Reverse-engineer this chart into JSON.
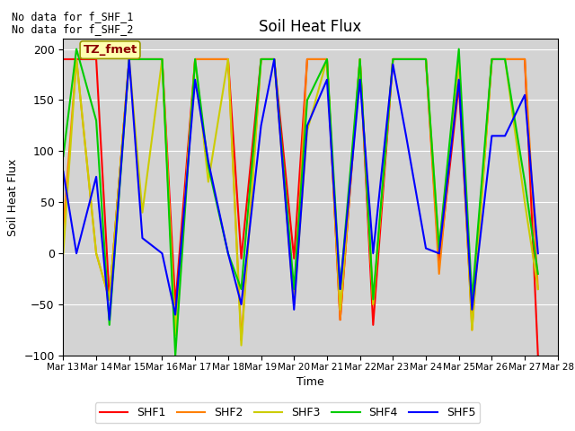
{
  "title": "Soil Heat Flux",
  "xlabel": "Time",
  "ylabel": "Soil Heat Flux",
  "ylim": [
    -100,
    210
  ],
  "yticks": [
    -100,
    -50,
    0,
    50,
    100,
    150,
    200
  ],
  "annotation_lines": [
    "No data for f_SHF_1",
    "No data for f_SHF_2"
  ],
  "annotation_box_text": "TZ_fmet",
  "colors": {
    "SHF1": "#ff0000",
    "SHF2": "#ff8000",
    "SHF3": "#cccc00",
    "SHF4": "#00cc00",
    "SHF5": "#0000ff"
  },
  "background_color": "#d3d3d3",
  "series": {
    "SHF1": {
      "x": [
        0,
        0.4,
        1,
        1.4,
        2,
        2.4,
        3,
        3.4,
        4,
        4.4,
        5,
        5.4,
        6,
        6.4,
        7,
        7.4,
        8,
        8.4,
        9,
        9.4,
        10,
        10.4,
        11,
        11.4,
        12,
        12.4,
        13,
        13.4,
        14,
        14.4
      ],
      "y": [
        190,
        190,
        190,
        -45,
        190,
        190,
        190,
        -50,
        190,
        190,
        190,
        -5,
        190,
        190,
        -5,
        190,
        190,
        -65,
        190,
        -70,
        190,
        190,
        190,
        -10,
        165,
        -65,
        190,
        190,
        190,
        -100
      ]
    },
    "SHF2": {
      "x": [
        0,
        0.4,
        1,
        1.4,
        2,
        2.4,
        3,
        3.4,
        4,
        4.4,
        5,
        5.4,
        6,
        6.4,
        7,
        7.4,
        8,
        8.4,
        9,
        9.4,
        10,
        10.4,
        11,
        11.4,
        12,
        12.4,
        13,
        13.4,
        14,
        14.4
      ],
      "y": [
        25,
        190,
        0,
        -45,
        190,
        190,
        190,
        -80,
        190,
        190,
        190,
        -85,
        190,
        190,
        -50,
        190,
        190,
        -65,
        190,
        -50,
        190,
        190,
        190,
        -20,
        190,
        -75,
        190,
        190,
        190,
        -35
      ]
    },
    "SHF3": {
      "x": [
        0,
        0.4,
        1,
        1.4,
        2,
        2.4,
        3,
        3.4,
        4,
        4.4,
        5,
        5.4,
        6,
        6.4,
        7,
        7.4,
        8,
        8.4,
        9,
        9.4,
        10,
        10.4,
        11,
        11.4,
        12,
        12.4,
        13,
        13.4,
        14,
        14.4
      ],
      "y": [
        0,
        190,
        0,
        -45,
        190,
        40,
        190,
        -80,
        190,
        70,
        190,
        -90,
        190,
        190,
        -50,
        120,
        190,
        -55,
        190,
        -50,
        190,
        190,
        190,
        5,
        190,
        -75,
        190,
        190,
        50,
        -35
      ]
    },
    "SHF4": {
      "x": [
        0,
        0.4,
        1,
        1.4,
        2,
        2.4,
        3,
        3.4,
        4,
        4.4,
        5,
        5.4,
        6,
        6.4,
        7,
        7.4,
        8,
        8.4,
        9,
        9.4,
        10,
        10.4,
        11,
        11.4,
        12,
        12.4,
        13,
        13.4,
        14,
        14.4
      ],
      "y": [
        95,
        200,
        130,
        -70,
        190,
        190,
        190,
        -100,
        190,
        85,
        0,
        -35,
        190,
        190,
        -35,
        150,
        190,
        -35,
        190,
        -45,
        190,
        190,
        190,
        5,
        200,
        -45,
        190,
        190,
        70,
        -20
      ]
    },
    "SHF5": {
      "x": [
        0,
        0.4,
        1,
        1.4,
        2,
        2.4,
        3,
        3.4,
        4,
        4.4,
        5,
        5.4,
        6,
        6.4,
        7,
        7.4,
        8,
        8.4,
        9,
        9.4,
        10,
        10.4,
        11,
        11.4,
        12,
        12.4,
        13,
        13.4,
        14,
        14.4
      ],
      "y": [
        80,
        0,
        75,
        -65,
        190,
        15,
        0,
        -60,
        170,
        90,
        0,
        -50,
        125,
        190,
        -55,
        125,
        170,
        -35,
        170,
        0,
        185,
        115,
        5,
        0,
        170,
        -55,
        115,
        115,
        155,
        0
      ]
    }
  },
  "xtick_positions": [
    0,
    1,
    2,
    3,
    4,
    5,
    6,
    7,
    8,
    9,
    10,
    11,
    12,
    13,
    14,
    15
  ],
  "xtick_labels": [
    "Mar 13",
    "Mar 14",
    "Mar 15",
    "Mar 16",
    "Mar 17",
    "Mar 18",
    "Mar 19",
    "Mar 20",
    "Mar 21",
    "Mar 22",
    "Mar 23",
    "Mar 24",
    "Mar 25",
    "Mar 26",
    "Mar 27",
    "Mar 28"
  ],
  "xlim": [
    0,
    15
  ]
}
